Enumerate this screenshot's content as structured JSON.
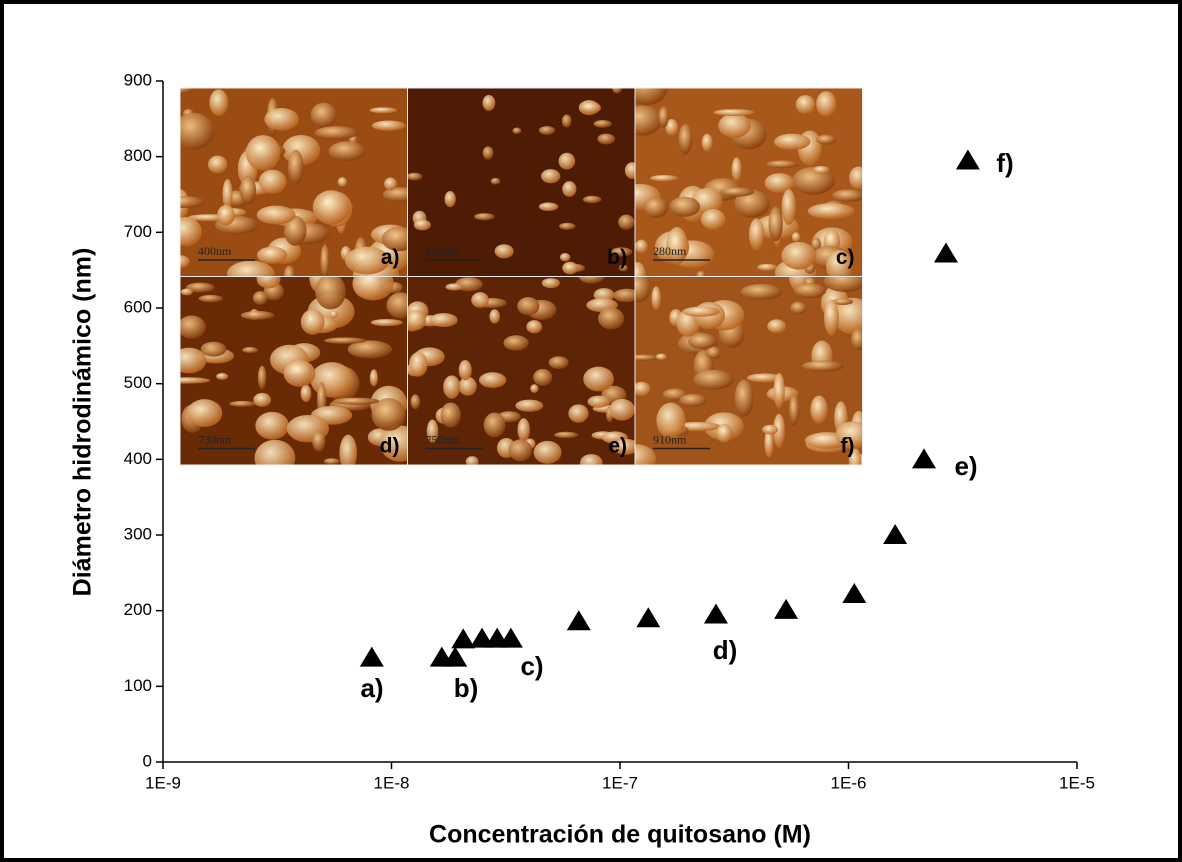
{
  "chart_data": {
    "type": "scatter",
    "x_label": "Concentración de quitosano (M)",
    "y_label": "Diámetro hidrodinámico (nm)",
    "xscale": "log",
    "xlim": [
      1e-09,
      1e-05
    ],
    "xticks": [
      {
        "value": 1e-09,
        "label": "1E-9"
      },
      {
        "value": 1e-08,
        "label": "1E-8"
      },
      {
        "value": 1e-07,
        "label": "1E-7"
      },
      {
        "value": 1e-06,
        "label": "1E-6"
      },
      {
        "value": 1e-05,
        "label": "1E-5"
      }
    ],
    "ylim": [
      0,
      900
    ],
    "yticks": [
      0,
      100,
      200,
      300,
      400,
      500,
      600,
      700,
      800,
      900
    ],
    "grid": false,
    "color": "#000000",
    "x": [
      8.2e-09,
      1.66e-08,
      1.9e-08,
      2.06e-08,
      2.49e-08,
      2.9e-08,
      3.33e-08,
      6.6e-08,
      1.33e-07,
      2.63e-07,
      5.33e-07,
      1.06e-06,
      1.6e-06,
      2.14e-06,
      2.67e-06,
      3.33e-06
    ],
    "values": [
      138,
      138,
      138,
      162,
      163,
      163,
      163,
      186,
      190,
      195,
      201,
      222,
      300,
      400,
      672,
      795
    ],
    "annotations": [
      "a)",
      "b)",
      "c)",
      "d)",
      "e)",
      "f)"
    ],
    "insets": [
      {
        "label": "a)",
        "scale_bar": "400nm"
      },
      {
        "label": "b)",
        "scale_bar": "660nm"
      },
      {
        "label": "c)",
        "scale_bar": "280nm"
      },
      {
        "label": "d)",
        "scale_bar": "730nm"
      },
      {
        "label": "e)",
        "scale_bar": "750nm"
      },
      {
        "label": "f)",
        "scale_bar": "910nm"
      }
    ]
  }
}
